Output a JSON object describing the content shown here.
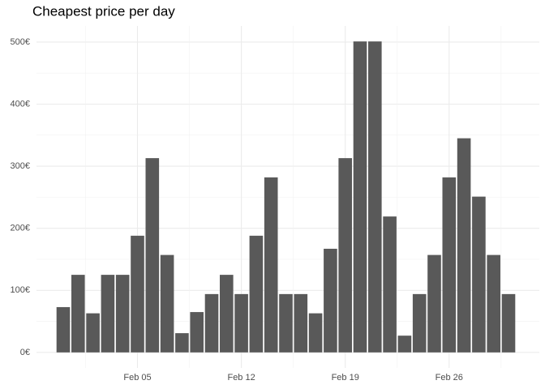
{
  "chart_data": {
    "type": "bar",
    "title": "Cheapest price per day",
    "x": [
      "Jan 31",
      "Feb 01",
      "Feb 02",
      "Feb 03",
      "Feb 04",
      "Feb 05",
      "Feb 06",
      "Feb 07",
      "Feb 08",
      "Feb 09",
      "Feb 10",
      "Feb 11",
      "Feb 12",
      "Feb 13",
      "Feb 14",
      "Feb 15",
      "Feb 16",
      "Feb 17",
      "Feb 18",
      "Feb 19",
      "Feb 20",
      "Feb 21",
      "Feb 22",
      "Feb 23",
      "Feb 24",
      "Feb 25",
      "Feb 26",
      "Feb 27",
      "Feb 28",
      "Mar 01",
      "Mar 02"
    ],
    "values": [
      73,
      125,
      63,
      125,
      125,
      188,
      313,
      157,
      31,
      65,
      94,
      125,
      94,
      188,
      282,
      94,
      94,
      63,
      167,
      313,
      501,
      501,
      219,
      27,
      94,
      157,
      282,
      345,
      251,
      157,
      94
    ],
    "color": "#595959",
    "ylim": [
      -25,
      526
    ],
    "yticks": [
      {
        "value": 0,
        "label": "0€"
      },
      {
        "value": 100,
        "label": "100€"
      },
      {
        "value": 200,
        "label": "200€"
      },
      {
        "value": 300,
        "label": "300€"
      },
      {
        "value": 400,
        "label": "400€"
      },
      {
        "value": 500,
        "label": "500€"
      }
    ],
    "xticks": [
      "Feb 05",
      "Feb 12",
      "Feb 19",
      "Feb 26"
    ],
    "grid": true
  }
}
